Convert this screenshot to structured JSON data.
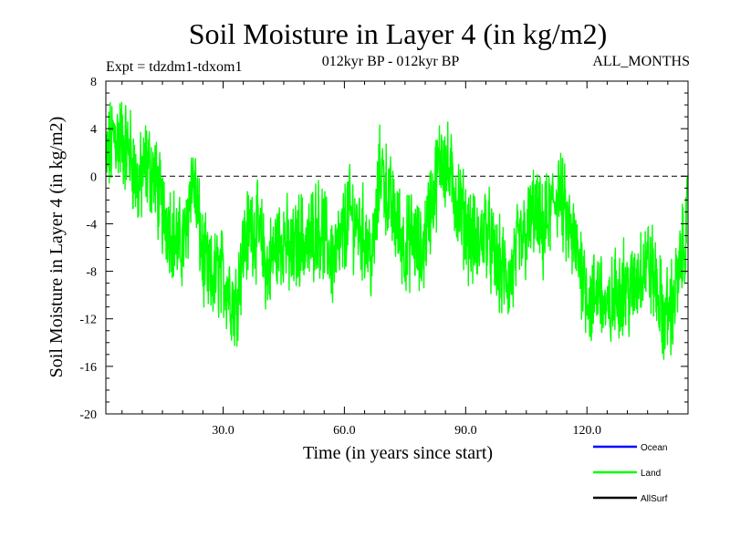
{
  "chart_data": {
    "type": "line",
    "title": "Soil Moisture in Layer 4 (in kg/m2)",
    "subtitle_left": "Expt = tdzdm1-tdxom1",
    "subtitle_center": "012kyr BP - 012kyr BP",
    "subtitle_right": "ALL_MONTHS",
    "xlabel": "Time (in years since start)",
    "ylabel": "Soil Moisture in Layer 4 (in kg/m2)",
    "xlim": [
      1,
      145
    ],
    "ylim": [
      -20,
      8
    ],
    "x_ticks": [
      30.0,
      60.0,
      90.0,
      120.0
    ],
    "x_tick_labels": [
      "30.0",
      "60.0",
      "90.0",
      "120.0"
    ],
    "y_ticks": [
      8,
      4,
      0,
      -4,
      -8,
      -12,
      -16,
      -20
    ],
    "y_tick_labels": [
      "8",
      "4",
      "0",
      "-4",
      "-8",
      "-12",
      "-16",
      "-20"
    ],
    "reference_line": 0,
    "legend_position": "bottom-right",
    "legend": [
      {
        "name": "Ocean",
        "color": "#0000ff"
      },
      {
        "name": "Land",
        "color": "#00ff00"
      },
      {
        "name": "AllSurf",
        "color": "#000000"
      }
    ],
    "series": [
      {
        "name": "Land",
        "color": "#00ff00",
        "anchors_x": [
          1,
          3,
          5,
          7,
          9,
          11,
          13,
          15,
          17,
          19,
          21,
          22,
          23,
          25,
          27,
          29,
          31,
          33,
          35,
          37,
          39,
          41,
          43,
          45,
          47,
          49,
          51,
          53,
          55,
          57,
          59,
          61,
          63,
          65,
          67,
          69,
          71,
          73,
          75,
          77,
          79,
          81,
          83,
          84,
          85,
          87,
          89,
          91,
          93,
          95,
          97,
          99,
          101,
          103,
          105,
          107,
          109,
          111,
          113,
          115,
          117,
          119,
          121,
          123,
          125,
          127,
          129,
          131,
          133,
          135,
          137,
          139,
          141,
          143,
          145
        ],
        "anchors_y": [
          1,
          3.5,
          3,
          2,
          -1,
          1,
          0,
          -3,
          -4,
          -6,
          -5,
          0,
          -1,
          -7,
          -9,
          -8,
          -9,
          -11,
          -6,
          -4,
          -5,
          -8,
          -6,
          -5,
          -7,
          -5,
          -6,
          -4,
          -5,
          -7,
          -6,
          -3,
          -4,
          -5,
          -7,
          1,
          -2,
          -4,
          -6,
          -5,
          -7,
          -3,
          0,
          2,
          1,
          -1,
          -3,
          -5,
          -6,
          -4,
          -7,
          -8,
          -9,
          -6,
          -5,
          -3,
          -5,
          -3,
          -1,
          -4,
          -6,
          -8,
          -11,
          -9,
          -12,
          -10,
          -9,
          -10,
          -8,
          -7,
          -9,
          -12,
          -11,
          -8,
          -3
        ]
      }
    ]
  }
}
